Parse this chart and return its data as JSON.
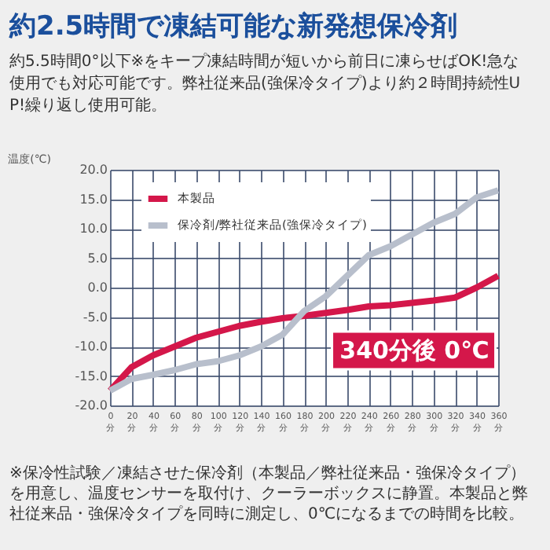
{
  "chart_data": {
    "type": "line",
    "title": "約2.5時間で凍結可能な新発想保冷剤",
    "subtitle": "約5.5時間0°以下※をキープ凍結時間が短いから前日に凍らせばOK!急な使用でも対応可能です。弊社従来品(強保冷タイプ)より約２時間持続性UP!繰り返し使用可能。",
    "ylabel": "温度(℃)",
    "x": [
      0,
      20,
      40,
      60,
      80,
      100,
      120,
      140,
      160,
      180,
      200,
      220,
      240,
      260,
      280,
      300,
      320,
      340,
      360
    ],
    "series": [
      {
        "name": "本製品",
        "color": "#d4174a",
        "values": [
          -17.5,
          -13.5,
          -11.5,
          -10,
          -8.5,
          -7.5,
          -6.5,
          -5.8,
          -5.2,
          -4.8,
          -4.3,
          -3.8,
          -3.2,
          -3,
          -2.6,
          -2.2,
          -1.7,
          0,
          2
        ]
      },
      {
        "name": "保冷剤/弊社従来品(強保冷タイプ)",
        "color": "#b8bfcc",
        "values": [
          -17.5,
          -15.5,
          -14.8,
          -14,
          -13,
          -12.5,
          -11.5,
          -10,
          -8,
          -4,
          -1.5,
          2,
          5.5,
          7,
          9,
          11,
          12.5,
          15.3,
          16.5
        ]
      }
    ],
    "xlim": [
      0,
      360
    ],
    "xticks": [
      {
        "value": 0,
        "label": "0\n分"
      },
      {
        "value": 20,
        "label": "20\n分"
      },
      {
        "value": 40,
        "label": "40\n分"
      },
      {
        "value": 60,
        "label": "60\n分"
      },
      {
        "value": 80,
        "label": "80\n分"
      },
      {
        "value": 100,
        "label": "100\n分"
      },
      {
        "value": 120,
        "label": "120\n分"
      },
      {
        "value": 140,
        "label": "140\n分"
      },
      {
        "value": 160,
        "label": "160\n分"
      },
      {
        "value": 180,
        "label": "180\n分"
      },
      {
        "value": 200,
        "label": "200\n分"
      },
      {
        "value": 220,
        "label": "220\n分"
      },
      {
        "value": 240,
        "label": "240\n分"
      },
      {
        "value": 260,
        "label": "260\n分"
      },
      {
        "value": 280,
        "label": "280\n分"
      },
      {
        "value": 300,
        "label": "300\n分"
      },
      {
        "value": 320,
        "label": "320\n分"
      },
      {
        "value": 340,
        "label": "340\n分"
      },
      {
        "value": 360,
        "label": "360\n分"
      }
    ],
    "ylim": [
      -20,
      20
    ],
    "yticks": [
      {
        "value": -20,
        "label": "-20.0"
      },
      {
        "value": -15,
        "label": "-15.0"
      },
      {
        "value": -10,
        "label": "-10.0"
      },
      {
        "value": -5,
        "label": "-5.0"
      },
      {
        "value": 0,
        "label": "0.0"
      },
      {
        "value": 5,
        "label": "5.0"
      },
      {
        "value": 10,
        "label": "10.0"
      },
      {
        "value": 15,
        "label": "15.0"
      },
      {
        "value": 20,
        "label": "20.0"
      }
    ],
    "grid": true,
    "legend": "top left",
    "marker": "none",
    "line_style": "solid",
    "annotations": [
      {
        "text": "340分後 0℃",
        "x": 340,
        "y": 0
      },
      "※保冷性試験／凍結させた保冷剤（本製品／弊社従来品・強保冷タイプ）を用意し、温度センサーを取付け、クーラーボックスに静置。本製品と弊社従来品・強保冷タイプを同時に測定し、0℃になるまでの時間を比較。"
    ]
  }
}
